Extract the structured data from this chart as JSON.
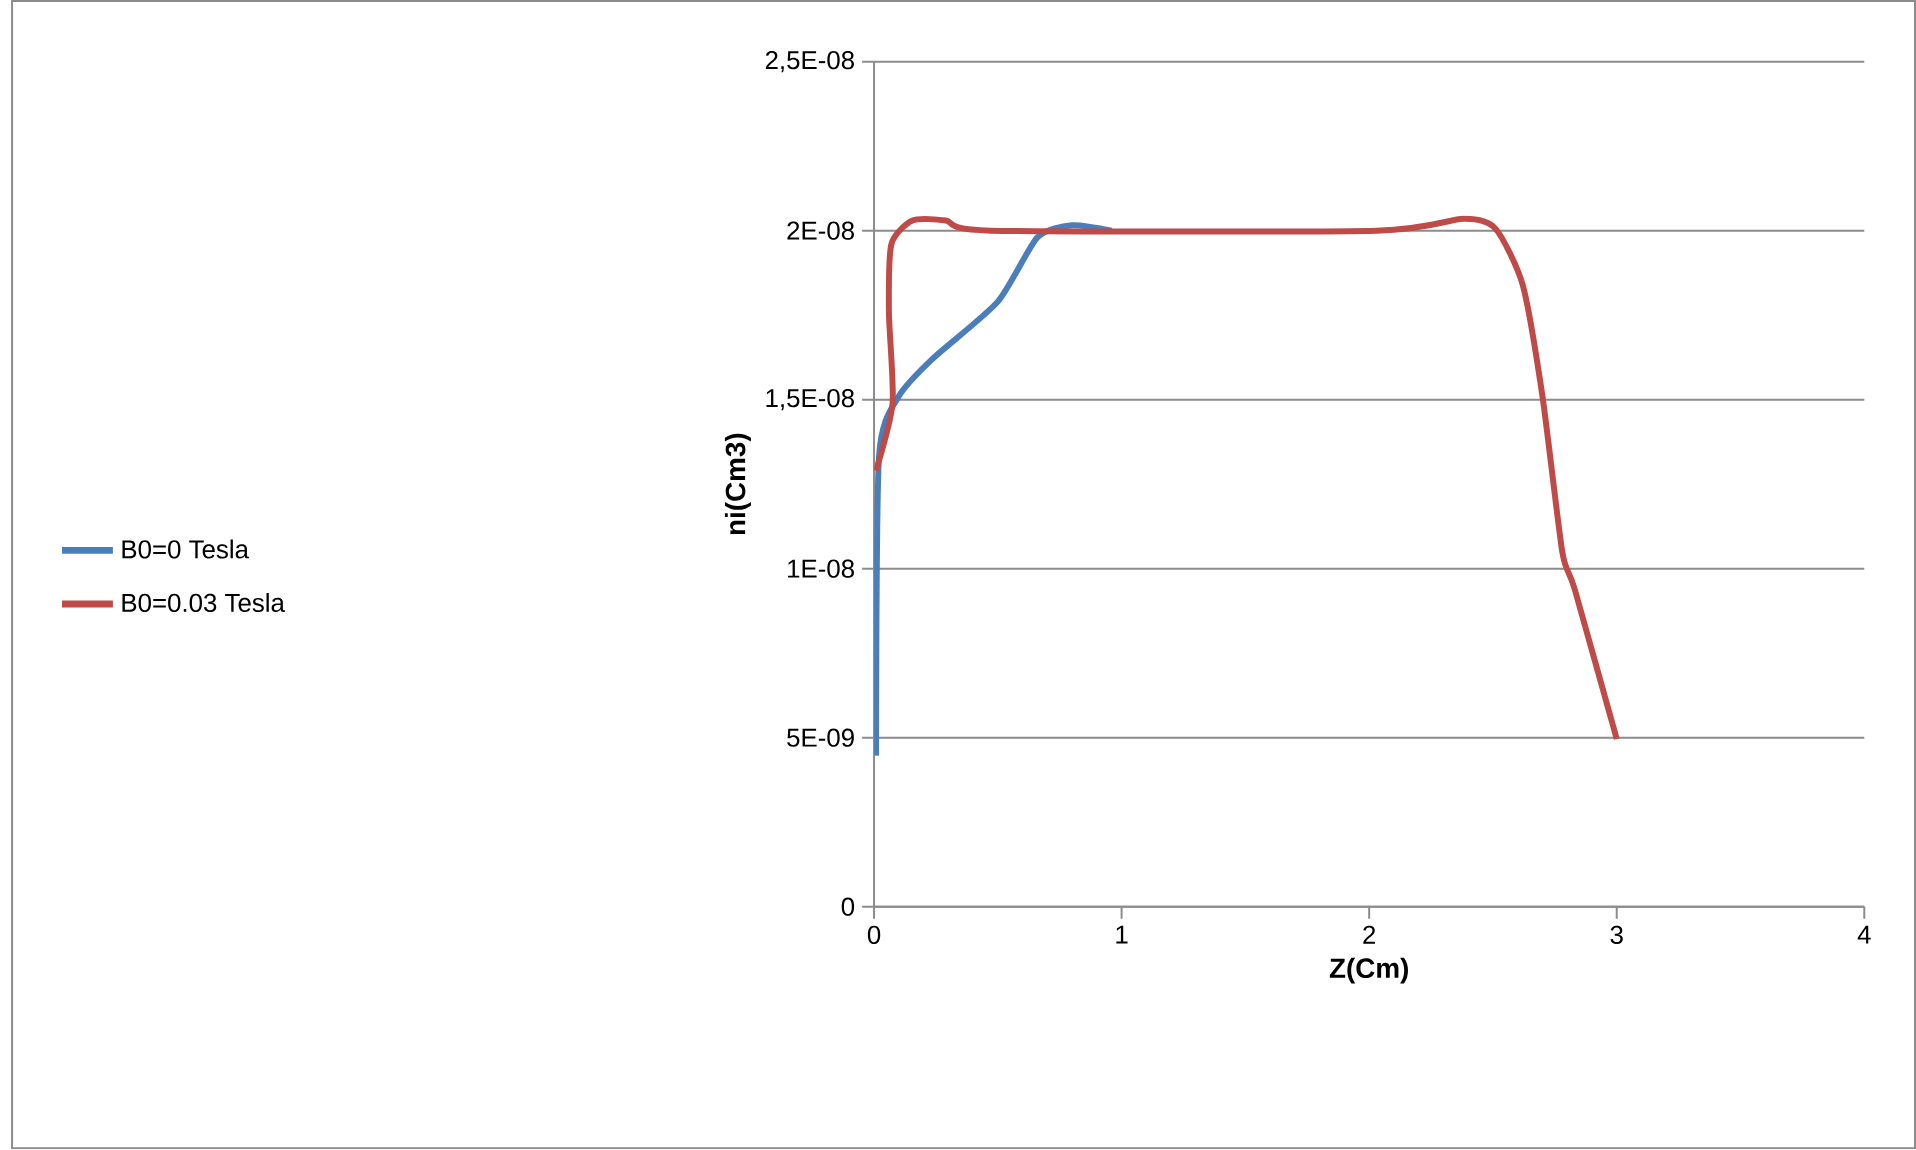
{
  "chart_data": {
    "type": "line",
    "xlabel": "Z(Cm)",
    "ylabel": "ni(Cm3)",
    "xlim": [
      0,
      4
    ],
    "xticks": [
      0,
      1,
      2,
      3,
      4
    ],
    "ylim": [
      0,
      2.5e-08
    ],
    "yticks": [
      {
        "value": 0,
        "label": "0"
      },
      {
        "value": 5e-09,
        "label": "5E-09"
      },
      {
        "value": 1e-08,
        "label": "1E-08"
      },
      {
        "value": 1.5e-08,
        "label": "1,5E-08"
      },
      {
        "value": 2e-08,
        "label": "2E-08"
      },
      {
        "value": 2.5e-08,
        "label": "2,5E-08"
      }
    ],
    "grid": "y",
    "legend": "left",
    "marker": "none",
    "line_style": "solid",
    "series": [
      {
        "name": "B0=0 Tesla",
        "color": "#4a7ebb",
        "x": [
          0.008,
          0.02,
          0.1,
          0.235,
          0.5,
          0.66,
          0.8,
          0.96
        ],
        "values": [
          4.47e-09,
          1.33e-08,
          1.51e-08,
          1.62e-08,
          1.79e-08,
          1.98e-08,
          2.016e-08,
          2e-08
        ]
      },
      {
        "name": "B0=0.03 Tesla",
        "color": "#be4b48",
        "x": [
          0.008,
          0.075,
          0.06,
          0.07,
          0.155,
          0.29,
          0.47,
          2.03,
          2.38,
          2.51,
          2.62,
          2.7,
          2.78,
          2.83,
          3.0
        ],
        "values": [
          1.29e-08,
          1.49e-08,
          1.76e-08,
          1.96e-08,
          2.03e-08,
          2.03e-08,
          2e-08,
          2e-08,
          2.035e-08,
          2.006e-08,
          1.84e-08,
          1.51e-08,
          1.05e-08,
          9.4e-09,
          4.96e-09
        ]
      }
    ]
  }
}
